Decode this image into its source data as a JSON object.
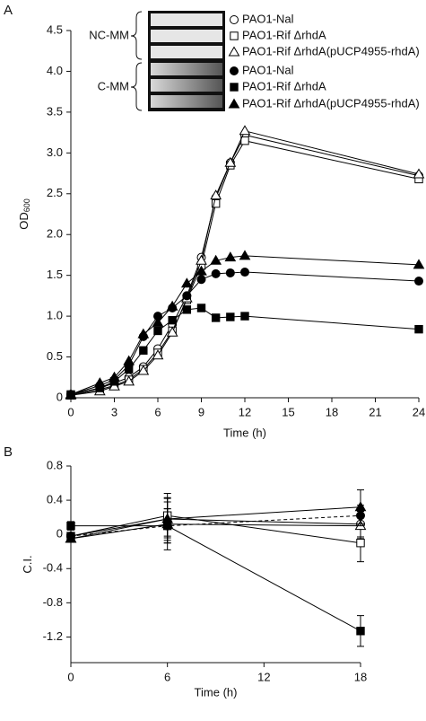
{
  "chart_data": [
    {
      "type": "line",
      "panel_label": "A",
      "xlabel": "Time (h)",
      "ylabel": [
        "OD",
        "600"
      ],
      "annotations": [
        "NC-MM",
        "C-MM"
      ],
      "x": [
        0,
        2,
        3,
        4,
        5,
        6,
        7,
        8,
        9,
        10,
        11,
        12,
        24
      ],
      "xlim": [
        0,
        24
      ],
      "xticks": [
        0,
        3,
        6,
        9,
        12,
        15,
        18,
        21,
        24
      ],
      "ylim": [
        0,
        4.5
      ],
      "yticks": [
        0,
        0.5,
        {
          "value": 1,
          "label": "1.0"
        },
        1.5,
        {
          "value": 2,
          "label": "2.0"
        },
        2.5,
        {
          "value": 3,
          "label": "3.0"
        },
        3.5,
        {
          "value": 4,
          "label": "4.0"
        },
        4.5
      ],
      "series": [
        {
          "name": "PAO1-Nal",
          "color": "#000000",
          "marker": "circle",
          "filled": false,
          "values": [
            0.04,
            0.12,
            0.18,
            0.25,
            0.38,
            0.6,
            0.9,
            1.25,
            1.72,
            2.45,
            2.88,
            3.22,
            2.72
          ]
        },
        {
          "name": "PAO1-Rif ΔrhdA",
          "color": "#000000",
          "marker": "square",
          "filled": false,
          "values": [
            0.03,
            0.1,
            0.15,
            0.22,
            0.35,
            0.55,
            0.82,
            1.2,
            1.62,
            2.38,
            2.85,
            3.15,
            2.68
          ]
        },
        {
          "name": "PAO1-Rif ΔrhdA(pUCP4955-rhdA)",
          "color": "#000000",
          "marker": "triangle",
          "filled": false,
          "values": [
            0.03,
            0.08,
            0.14,
            0.2,
            0.33,
            0.52,
            0.8,
            1.22,
            1.68,
            2.48,
            2.88,
            3.27,
            2.74
          ]
        },
        {
          "name": "PAO1-Nal",
          "color": "#000000",
          "marker": "circle",
          "filled": true,
          "values": [
            0.04,
            0.15,
            0.22,
            0.4,
            0.75,
            1.0,
            1.1,
            1.25,
            1.45,
            1.52,
            1.53,
            1.54,
            1.43
          ]
        },
        {
          "name": "PAO1-Rif ΔrhdA",
          "color": "#000000",
          "marker": "square",
          "filled": true,
          "values": [
            0.04,
            0.12,
            0.2,
            0.35,
            0.58,
            0.82,
            0.95,
            1.08,
            1.1,
            0.98,
            0.99,
            1.0,
            0.84
          ]
        },
        {
          "name": "PAO1-Rif ΔrhdA(pUCP4955-rhdA)",
          "color": "#000000",
          "marker": "triangle",
          "filled": true,
          "values": [
            0.04,
            0.18,
            0.25,
            0.45,
            0.78,
            0.92,
            1.12,
            1.4,
            1.55,
            1.68,
            1.72,
            1.74,
            1.63
          ]
        }
      ]
    },
    {
      "type": "line",
      "panel_label": "B",
      "xlabel": "Time (h)",
      "ylabel": [
        "C.I."
      ],
      "x": [
        0,
        6,
        18
      ],
      "xlim": [
        0,
        18
      ],
      "xticks": [
        0,
        6,
        12,
        18
      ],
      "ylim": [
        -1.5,
        0.8
      ],
      "yticks": [
        -1.2,
        -0.8,
        -0.4,
        0,
        0.4,
        0.8
      ],
      "series": [
        {
          "color": "#000000",
          "marker": "circle",
          "filled": false,
          "values": [
            -0.02,
            0.18,
            0.12
          ],
          "errors": [
            0.04,
            0.25,
            0.15
          ]
        },
        {
          "color": "#000000",
          "marker": "square",
          "filled": false,
          "values": [
            -0.02,
            0.22,
            -0.1
          ],
          "errors": [
            0.04,
            0.26,
            0.22
          ]
        },
        {
          "color": "#000000",
          "marker": "triangle",
          "filled": false,
          "values": [
            -0.05,
            0.12,
            0.1
          ],
          "errors": [
            0.04,
            0.3,
            0.15
          ]
        },
        {
          "color": "#000000",
          "marker": "circle",
          "filled": true,
          "dashed": true,
          "values": [
            -0.02,
            0.1,
            0.22
          ],
          "errors": [
            0.04,
            0.2,
            0.12
          ]
        },
        {
          "color": "#000000",
          "marker": "square",
          "filled": true,
          "values": [
            0.1,
            0.1,
            -1.13
          ],
          "errors": [
            0.05,
            0.2,
            0.18
          ]
        },
        {
          "color": "#000000",
          "marker": "triangle",
          "filled": true,
          "values": [
            -0.05,
            0.18,
            0.32
          ],
          "errors": [
            0.04,
            0.2,
            0.2
          ]
        }
      ]
    }
  ]
}
